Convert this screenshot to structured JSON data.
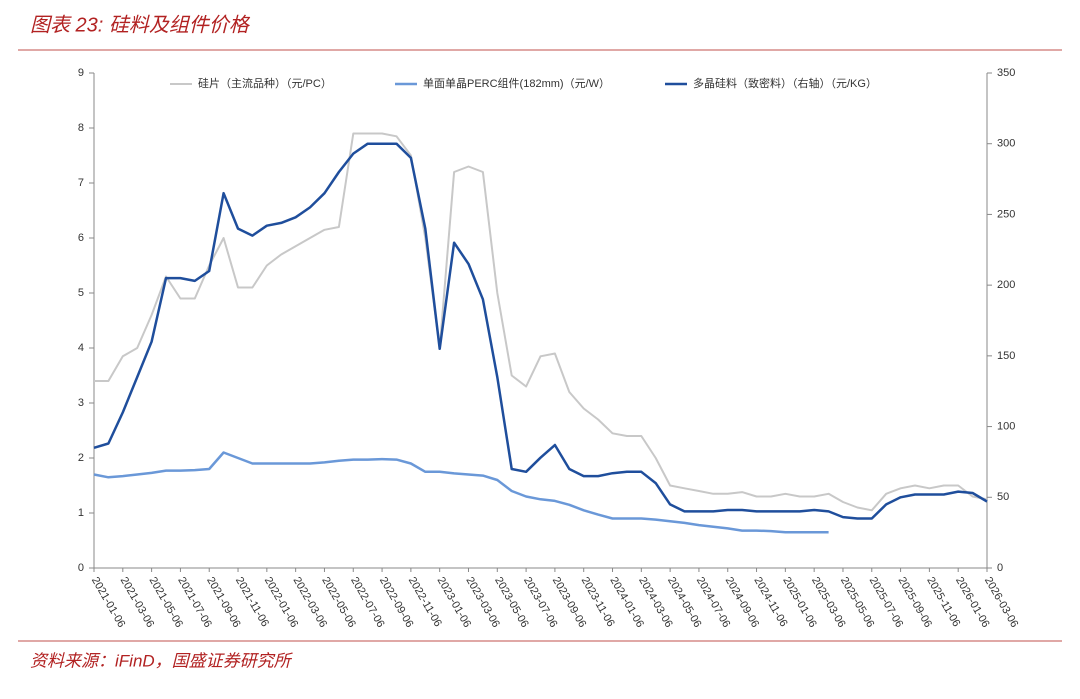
{
  "chart_data": {
    "type": "line",
    "title": "图表 23: 硅料及组件价格",
    "source": "资料来源：iFinD，国盛证券研究所",
    "categories": [
      "2021-01-06",
      null,
      "2021-03-06",
      null,
      "2021-05-06",
      null,
      "2021-07-06",
      null,
      "2021-09-06",
      null,
      "2021-11-06",
      null,
      "2022-01-06",
      null,
      "2022-03-06",
      null,
      "2022-05-06",
      null,
      "2022-07-06",
      null,
      "2022-09-06",
      null,
      "2022-11-06",
      null,
      "2023-01-06",
      null,
      "2023-03-06",
      null,
      "2023-05-06",
      null,
      "2023-07-06",
      null,
      "2023-09-06",
      null,
      "2023-11-06",
      null,
      "2024-01-06",
      null,
      "2024-03-06",
      null,
      "2024-05-06",
      null,
      "2024-07-06",
      null,
      "2024-09-06",
      null,
      "2024-11-06",
      null,
      "2025-01-06",
      null,
      "2025-03-06",
      null,
      "2025-05-06",
      null,
      "2025-07-06",
      null,
      "2025-09-06",
      null,
      "2025-11-06",
      null,
      "2026-01-06",
      null,
      "2026-03-06"
    ],
    "series": [
      {
        "name": "硅片（主流品种）（元/PC）",
        "color": "#c8c8c8",
        "width": 2,
        "values": [
          3.4,
          3.4,
          3.85,
          4.0,
          4.6,
          5.3,
          4.9,
          4.9,
          5.5,
          6.0,
          5.1,
          5.1,
          5.5,
          5.7,
          5.85,
          6.0,
          6.15,
          6.2,
          7.9,
          7.9,
          7.9,
          7.85,
          7.5,
          6.0,
          4.0,
          7.2,
          7.3,
          7.2,
          5.0,
          3.5,
          3.3,
          3.85,
          3.9,
          3.2,
          2.9,
          2.7,
          2.45,
          2.4,
          2.4,
          2.0,
          1.5,
          1.45,
          1.4,
          1.35,
          1.35,
          1.38,
          1.3,
          1.3,
          1.35,
          1.3,
          1.3,
          1.35,
          1.2,
          1.1,
          1.05,
          1.35,
          1.45,
          1.5,
          1.45,
          1.5,
          1.5,
          1.3,
          1.25
        ]
      },
      {
        "name": "单面单晶PERC组件(182mm)（元/W）",
        "color": "#6a98d8",
        "width": 2.5,
        "values": [
          1.7,
          1.65,
          1.67,
          1.7,
          1.73,
          1.77,
          1.77,
          1.78,
          1.8,
          2.1,
          2.0,
          1.9,
          1.9,
          1.9,
          1.9,
          1.9,
          1.92,
          1.95,
          1.97,
          1.97,
          1.98,
          1.97,
          1.9,
          1.75,
          1.75,
          1.72,
          1.7,
          1.68,
          1.6,
          1.4,
          1.3,
          1.25,
          1.22,
          1.15,
          1.05,
          0.97,
          0.9,
          0.9,
          0.9,
          0.88,
          0.85,
          0.82,
          0.78,
          0.75,
          0.72,
          0.68,
          0.68,
          0.67,
          0.65,
          0.65,
          0.65,
          0.65,
          null,
          null,
          null,
          null,
          null,
          null,
          null,
          null,
          null,
          null,
          null
        ]
      },
      {
        "name": "多晶硅料（致密料）（右轴）（元/KG）",
        "color": "#1f4e9c",
        "width": 2.5,
        "axis": "y2",
        "values": [
          85,
          88,
          110,
          135,
          160,
          205,
          205,
          203,
          210,
          265,
          240,
          235,
          242,
          244,
          248,
          255,
          265,
          280,
          293,
          300,
          300,
          300,
          290,
          240,
          155,
          230,
          215,
          190,
          135,
          70,
          68,
          78,
          87,
          70,
          65,
          65,
          67,
          68,
          68,
          60,
          45,
          40,
          40,
          40,
          41,
          41,
          40,
          40,
          40,
          40,
          41,
          40,
          36,
          35,
          35,
          45,
          50,
          52,
          52,
          52,
          54,
          53,
          47
        ]
      }
    ],
    "ylim": [
      0,
      9
    ],
    "yticks": [
      0,
      1,
      2,
      3,
      4,
      5,
      6,
      7,
      8,
      9
    ],
    "y2lim": [
      0,
      350
    ],
    "y2ticks": [
      0,
      50,
      100,
      150,
      200,
      250,
      300,
      350
    ]
  }
}
